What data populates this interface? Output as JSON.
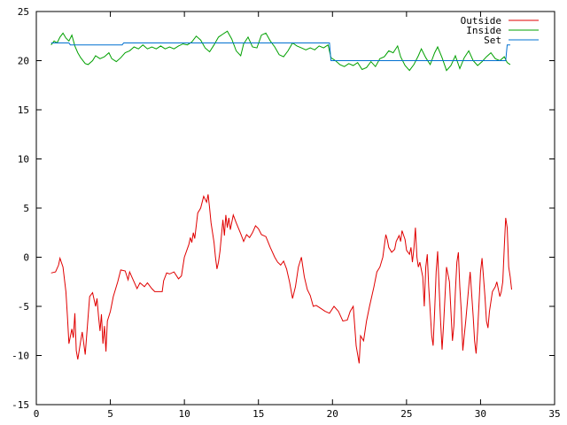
{
  "chart_data": {
    "type": "line",
    "title": "",
    "xlabel": "",
    "ylabel": "",
    "xlim": [
      0,
      35
    ],
    "ylim": [
      -15,
      25
    ],
    "xticks": [
      0,
      5,
      10,
      15,
      20,
      25,
      30,
      35
    ],
    "yticks": [
      -15,
      -10,
      -5,
      0,
      5,
      10,
      15,
      20,
      25
    ],
    "grid": false,
    "legend_position": "top-right",
    "series": [
      {
        "name": "Outside",
        "color": "#e00000",
        "points": [
          [
            1.0,
            -1.6
          ],
          [
            1.3,
            -1.5
          ],
          [
            1.5,
            -0.8
          ],
          [
            1.6,
            -0.1
          ],
          [
            1.8,
            -1.0
          ],
          [
            2.0,
            -3.5
          ],
          [
            2.1,
            -6.0
          ],
          [
            2.2,
            -8.8
          ],
          [
            2.4,
            -7.3
          ],
          [
            2.5,
            -8.2
          ],
          [
            2.6,
            -5.7
          ],
          [
            2.7,
            -9.5
          ],
          [
            2.8,
            -10.4
          ],
          [
            3.0,
            -8.5
          ],
          [
            3.1,
            -7.6
          ],
          [
            3.3,
            -9.9
          ],
          [
            3.5,
            -6.0
          ],
          [
            3.6,
            -4.0
          ],
          [
            3.8,
            -3.6
          ],
          [
            4.0,
            -5.0
          ],
          [
            4.1,
            -4.2
          ],
          [
            4.2,
            -6.0
          ],
          [
            4.3,
            -7.5
          ],
          [
            4.4,
            -5.8
          ],
          [
            4.5,
            -8.8
          ],
          [
            4.6,
            -7.0
          ],
          [
            4.7,
            -9.6
          ],
          [
            4.8,
            -6.5
          ],
          [
            5.0,
            -5.5
          ],
          [
            5.2,
            -4.0
          ],
          [
            5.5,
            -2.5
          ],
          [
            5.7,
            -1.3
          ],
          [
            6.0,
            -1.4
          ],
          [
            6.2,
            -2.3
          ],
          [
            6.3,
            -1.5
          ],
          [
            6.6,
            -2.5
          ],
          [
            6.8,
            -3.2
          ],
          [
            7.0,
            -2.6
          ],
          [
            7.3,
            -3.0
          ],
          [
            7.5,
            -2.6
          ],
          [
            7.8,
            -3.2
          ],
          [
            8.0,
            -3.5
          ],
          [
            8.5,
            -3.5
          ],
          [
            8.6,
            -2.4
          ],
          [
            8.8,
            -1.6
          ],
          [
            9.0,
            -1.7
          ],
          [
            9.3,
            -1.5
          ],
          [
            9.6,
            -2.2
          ],
          [
            9.8,
            -1.9
          ],
          [
            10.0,
            0.0
          ],
          [
            10.3,
            1.3
          ],
          [
            10.4,
            2.0
          ],
          [
            10.5,
            1.5
          ],
          [
            10.6,
            2.5
          ],
          [
            10.7,
            1.9
          ],
          [
            10.9,
            4.5
          ],
          [
            11.1,
            5.0
          ],
          [
            11.3,
            6.2
          ],
          [
            11.5,
            5.6
          ],
          [
            11.6,
            6.4
          ],
          [
            11.7,
            5.0
          ],
          [
            11.8,
            3.5
          ],
          [
            12.0,
            1.5
          ],
          [
            12.1,
            0.0
          ],
          [
            12.2,
            -1.2
          ],
          [
            12.3,
            -0.5
          ],
          [
            12.4,
            0.6
          ],
          [
            12.6,
            3.8
          ],
          [
            12.7,
            2.2
          ],
          [
            12.8,
            4.3
          ],
          [
            12.9,
            3.0
          ],
          [
            13.0,
            4.0
          ],
          [
            13.1,
            2.8
          ],
          [
            13.3,
            4.3
          ],
          [
            13.5,
            3.5
          ],
          [
            13.8,
            2.4
          ],
          [
            14.0,
            1.6
          ],
          [
            14.2,
            2.3
          ],
          [
            14.4,
            2.0
          ],
          [
            14.6,
            2.5
          ],
          [
            14.8,
            3.2
          ],
          [
            15.0,
            2.9
          ],
          [
            15.2,
            2.3
          ],
          [
            15.5,
            2.1
          ],
          [
            15.8,
            1.0
          ],
          [
            16.1,
            0.0
          ],
          [
            16.3,
            -0.5
          ],
          [
            16.5,
            -0.8
          ],
          [
            16.7,
            -0.4
          ],
          [
            16.9,
            -1.2
          ],
          [
            17.1,
            -2.5
          ],
          [
            17.3,
            -4.2
          ],
          [
            17.5,
            -3.0
          ],
          [
            17.7,
            -1.0
          ],
          [
            17.9,
            0.0
          ],
          [
            18.1,
            -2.0
          ],
          [
            18.3,
            -3.3
          ],
          [
            18.5,
            -3.9
          ],
          [
            18.7,
            -5.0
          ],
          [
            18.9,
            -4.9
          ],
          [
            19.2,
            -5.2
          ],
          [
            19.5,
            -5.5
          ],
          [
            19.8,
            -5.7
          ],
          [
            20.1,
            -5.0
          ],
          [
            20.4,
            -5.5
          ],
          [
            20.7,
            -6.5
          ],
          [
            21.0,
            -6.4
          ],
          [
            21.2,
            -5.5
          ],
          [
            21.4,
            -5.0
          ],
          [
            21.5,
            -7.0
          ],
          [
            21.6,
            -9.0
          ],
          [
            21.8,
            -10.8
          ],
          [
            21.9,
            -8.0
          ],
          [
            22.1,
            -8.5
          ],
          [
            22.3,
            -6.5
          ],
          [
            22.5,
            -5.0
          ],
          [
            22.8,
            -3.0
          ],
          [
            23.0,
            -1.5
          ],
          [
            23.2,
            -1.0
          ],
          [
            23.4,
            0.0
          ],
          [
            23.6,
            2.3
          ],
          [
            23.7,
            1.8
          ],
          [
            23.8,
            1.0
          ],
          [
            24.0,
            0.5
          ],
          [
            24.2,
            0.8
          ],
          [
            24.3,
            1.6
          ],
          [
            24.5,
            2.2
          ],
          [
            24.6,
            1.6
          ],
          [
            24.7,
            2.7
          ],
          [
            24.9,
            1.8
          ],
          [
            25.0,
            0.7
          ],
          [
            25.2,
            0.3
          ],
          [
            25.3,
            1.0
          ],
          [
            25.4,
            -0.5
          ],
          [
            25.5,
            0.9
          ],
          [
            25.6,
            3.0
          ],
          [
            25.7,
            0.0
          ],
          [
            25.8,
            -1.0
          ],
          [
            25.9,
            -0.5
          ],
          [
            26.1,
            -2.0
          ],
          [
            26.2,
            -5.0
          ],
          [
            26.3,
            -1.0
          ],
          [
            26.4,
            0.3
          ],
          [
            26.5,
            -3.0
          ],
          [
            26.6,
            -5.5
          ],
          [
            26.7,
            -8.0
          ],
          [
            26.8,
            -9.0
          ],
          [
            26.9,
            -5.5
          ],
          [
            27.0,
            -1.5
          ],
          [
            27.1,
            0.6
          ],
          [
            27.2,
            -3.0
          ],
          [
            27.3,
            -6.5
          ],
          [
            27.4,
            -9.4
          ],
          [
            27.5,
            -7.0
          ],
          [
            27.6,
            -4.0
          ],
          [
            27.7,
            -1.0
          ],
          [
            27.9,
            -2.5
          ],
          [
            28.0,
            -5.5
          ],
          [
            28.1,
            -8.5
          ],
          [
            28.2,
            -7.0
          ],
          [
            28.3,
            -3.5
          ],
          [
            28.4,
            -0.5
          ],
          [
            28.5,
            0.5
          ],
          [
            28.6,
            -3.0
          ],
          [
            28.7,
            -5.5
          ],
          [
            28.8,
            -9.5
          ],
          [
            28.9,
            -8.0
          ],
          [
            29.0,
            -6.5
          ],
          [
            29.2,
            -3.0
          ],
          [
            29.3,
            -1.5
          ],
          [
            29.5,
            -6.0
          ],
          [
            29.6,
            -8.5
          ],
          [
            29.7,
            -9.8
          ],
          [
            29.8,
            -7.5
          ],
          [
            29.9,
            -4.5
          ],
          [
            30.0,
            -1.5
          ],
          [
            30.1,
            -0.1
          ],
          [
            30.3,
            -4.0
          ],
          [
            30.4,
            -6.5
          ],
          [
            30.5,
            -7.2
          ],
          [
            30.6,
            -5.5
          ],
          [
            30.8,
            -3.5
          ],
          [
            31.0,
            -3.0
          ],
          [
            31.1,
            -2.5
          ],
          [
            31.3,
            -4.0
          ],
          [
            31.4,
            -3.5
          ],
          [
            31.5,
            -2.5
          ],
          [
            31.6,
            1.0
          ],
          [
            31.7,
            4.0
          ],
          [
            31.8,
            3.0
          ],
          [
            31.9,
            -1.0
          ],
          [
            32.0,
            -2.0
          ],
          [
            32.1,
            -3.3
          ]
        ]
      },
      {
        "name": "Inside",
        "color": "#00a000",
        "points": [
          [
            1.0,
            21.6
          ],
          [
            1.2,
            22.0
          ],
          [
            1.4,
            21.8
          ],
          [
            1.6,
            22.4
          ],
          [
            1.8,
            22.8
          ],
          [
            2.0,
            22.3
          ],
          [
            2.2,
            22.0
          ],
          [
            2.4,
            22.6
          ],
          [
            2.6,
            21.5
          ],
          [
            2.8,
            20.8
          ],
          [
            3.0,
            20.3
          ],
          [
            3.3,
            19.7
          ],
          [
            3.5,
            19.6
          ],
          [
            3.8,
            20.0
          ],
          [
            4.0,
            20.5
          ],
          [
            4.3,
            20.2
          ],
          [
            4.6,
            20.4
          ],
          [
            4.9,
            20.8
          ],
          [
            5.1,
            20.2
          ],
          [
            5.4,
            19.9
          ],
          [
            5.7,
            20.3
          ],
          [
            6.0,
            20.8
          ],
          [
            6.3,
            21.0
          ],
          [
            6.6,
            21.4
          ],
          [
            6.9,
            21.2
          ],
          [
            7.2,
            21.6
          ],
          [
            7.5,
            21.2
          ],
          [
            7.8,
            21.4
          ],
          [
            8.1,
            21.2
          ],
          [
            8.4,
            21.5
          ],
          [
            8.7,
            21.2
          ],
          [
            9.0,
            21.4
          ],
          [
            9.3,
            21.2
          ],
          [
            9.6,
            21.5
          ],
          [
            9.9,
            21.7
          ],
          [
            10.2,
            21.6
          ],
          [
            10.5,
            21.9
          ],
          [
            10.8,
            22.5
          ],
          [
            11.1,
            22.1
          ],
          [
            11.4,
            21.3
          ],
          [
            11.7,
            20.9
          ],
          [
            12.0,
            21.6
          ],
          [
            12.3,
            22.4
          ],
          [
            12.6,
            22.7
          ],
          [
            12.9,
            23.0
          ],
          [
            13.2,
            22.2
          ],
          [
            13.5,
            21.0
          ],
          [
            13.8,
            20.5
          ],
          [
            14.0,
            21.7
          ],
          [
            14.3,
            22.4
          ],
          [
            14.6,
            21.4
          ],
          [
            14.9,
            21.3
          ],
          [
            15.2,
            22.6
          ],
          [
            15.5,
            22.8
          ],
          [
            15.8,
            22.0
          ],
          [
            16.1,
            21.4
          ],
          [
            16.4,
            20.6
          ],
          [
            16.7,
            20.4
          ],
          [
            17.0,
            21.0
          ],
          [
            17.3,
            21.8
          ],
          [
            17.6,
            21.5
          ],
          [
            17.9,
            21.3
          ],
          [
            18.2,
            21.1
          ],
          [
            18.5,
            21.3
          ],
          [
            18.8,
            21.1
          ],
          [
            19.1,
            21.5
          ],
          [
            19.4,
            21.3
          ],
          [
            19.7,
            21.6
          ],
          [
            19.9,
            20.3
          ],
          [
            20.2,
            20.0
          ],
          [
            20.5,
            19.6
          ],
          [
            20.8,
            19.4
          ],
          [
            21.1,
            19.7
          ],
          [
            21.4,
            19.5
          ],
          [
            21.7,
            19.8
          ],
          [
            22.0,
            19.1
          ],
          [
            22.3,
            19.3
          ],
          [
            22.6,
            19.9
          ],
          [
            22.9,
            19.4
          ],
          [
            23.2,
            20.2
          ],
          [
            23.5,
            20.4
          ],
          [
            23.8,
            21.0
          ],
          [
            24.1,
            20.8
          ],
          [
            24.4,
            21.5
          ],
          [
            24.6,
            20.4
          ],
          [
            24.9,
            19.5
          ],
          [
            25.2,
            19.0
          ],
          [
            25.5,
            19.6
          ],
          [
            25.8,
            20.5
          ],
          [
            26.0,
            21.2
          ],
          [
            26.3,
            20.3
          ],
          [
            26.6,
            19.6
          ],
          [
            26.9,
            20.8
          ],
          [
            27.1,
            21.4
          ],
          [
            27.4,
            20.3
          ],
          [
            27.7,
            19.0
          ],
          [
            28.0,
            19.5
          ],
          [
            28.3,
            20.5
          ],
          [
            28.6,
            19.2
          ],
          [
            28.9,
            20.3
          ],
          [
            29.2,
            21.0
          ],
          [
            29.5,
            20.0
          ],
          [
            29.8,
            19.5
          ],
          [
            30.1,
            19.9
          ],
          [
            30.4,
            20.4
          ],
          [
            30.7,
            20.8
          ],
          [
            31.0,
            20.2
          ],
          [
            31.3,
            20.0
          ],
          [
            31.6,
            20.4
          ],
          [
            31.8,
            19.8
          ],
          [
            32.0,
            19.6
          ]
        ]
      },
      {
        "name": "Set",
        "color": "#0070d0",
        "points": [
          [
            1.0,
            21.8
          ],
          [
            2.2,
            21.8
          ],
          [
            2.3,
            21.6
          ],
          [
            5.8,
            21.6
          ],
          [
            5.9,
            21.8
          ],
          [
            19.8,
            21.8
          ],
          [
            19.9,
            20.0
          ],
          [
            31.7,
            20.0
          ],
          [
            31.8,
            21.6
          ],
          [
            32.0,
            21.6
          ]
        ]
      }
    ]
  }
}
